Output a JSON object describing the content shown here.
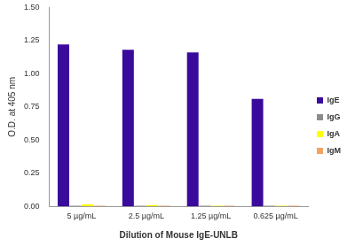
{
  "chart_data": {
    "type": "bar",
    "x_label": "Dilution of Mouse IgE-UNLB",
    "y_label": "O.D. at 405 nm",
    "categories": [
      "5 µg/mL",
      "2.5 µg/mL",
      "1.25 µg/mL",
      "0.625 µg/mL"
    ],
    "series": [
      {
        "name": "IgE",
        "color": "#3a0a9c",
        "values": [
          1.22,
          1.18,
          1.16,
          0.81
        ]
      },
      {
        "name": "IgG",
        "color": "#8c8c8c",
        "values": [
          0.005,
          0.005,
          0.005,
          0.005
        ]
      },
      {
        "name": "IgA",
        "color": "#ffff00",
        "values": [
          0.015,
          0.01,
          0.005,
          0.005
        ]
      },
      {
        "name": "IgM",
        "color": "#f4a460",
        "values": [
          0.005,
          0.005,
          0.005,
          0.005
        ]
      }
    ],
    "ylim": [
      0,
      1.5
    ],
    "yticks": [
      {
        "value": 0,
        "label": "0.00"
      },
      {
        "value": 0.25,
        "label": "0.25"
      },
      {
        "value": 0.5,
        "label": "0.50"
      },
      {
        "value": 0.75,
        "label": "0.75"
      },
      {
        "value": 1,
        "label": "1.00"
      },
      {
        "value": 1.25,
        "label": "1.25"
      },
      {
        "value": 1.5,
        "label": "1.50"
      }
    ],
    "grid": false,
    "legend": "right"
  }
}
